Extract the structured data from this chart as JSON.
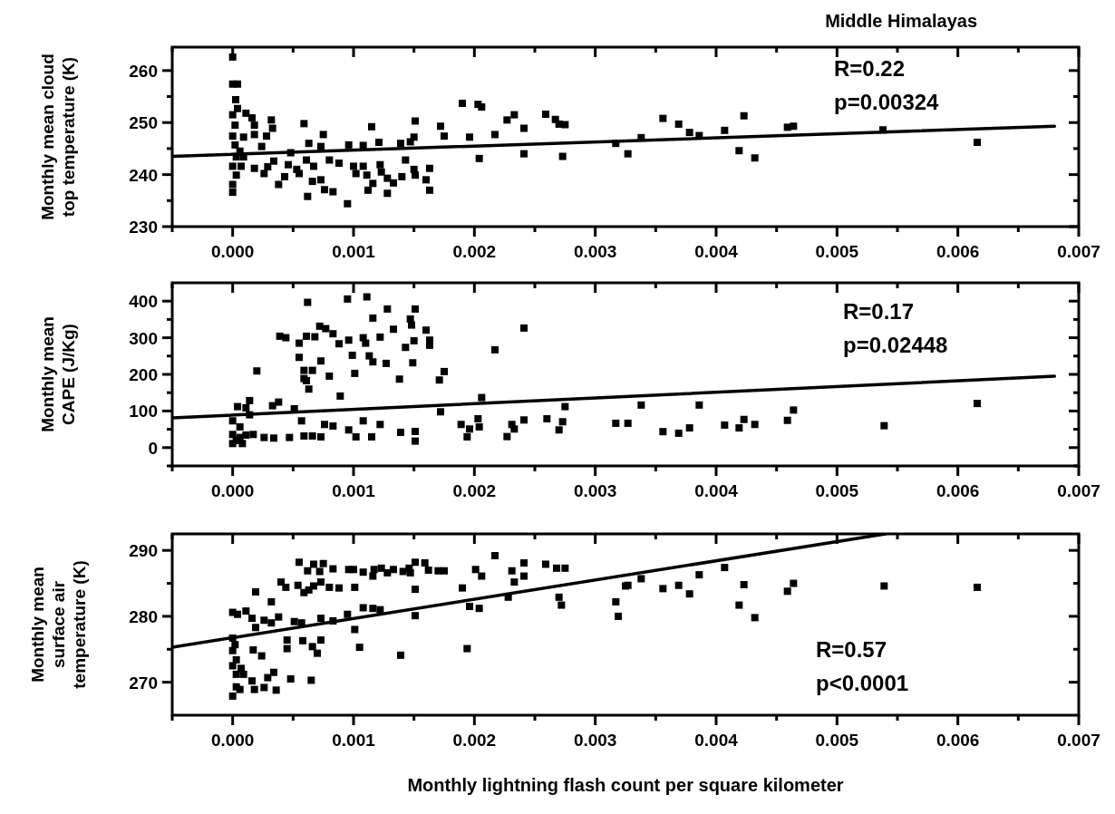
{
  "chart_data": [
    {
      "type": "scatter",
      "title": "Middle Himalayas",
      "ylabel": "Monthly mean cloud\ntop temperature (K)",
      "xlim": [
        -0.0005,
        0.007
      ],
      "ylim": [
        230,
        264.5
      ],
      "xticks": [
        {
          "value": -0.0005,
          "label": null
        },
        {
          "value": 0,
          "label": "0.000"
        },
        {
          "value": 0.0005,
          "label": null
        },
        {
          "value": 0.001,
          "label": "0.001"
        },
        {
          "value": 0.0015,
          "label": null
        },
        {
          "value": 0.002,
          "label": "0.002"
        },
        {
          "value": 0.0025,
          "label": null
        },
        {
          "value": 0.003,
          "label": "0.003"
        },
        {
          "value": 0.0035,
          "label": null
        },
        {
          "value": 0.004,
          "label": "0.004"
        },
        {
          "value": 0.0045,
          "label": null
        },
        {
          "value": 0.005,
          "label": "0.005"
        },
        {
          "value": 0.0055,
          "label": null
        },
        {
          "value": 0.006,
          "label": "0.006"
        },
        {
          "value": 0.0065,
          "label": null
        },
        {
          "value": 0.007,
          "label": "0.007"
        }
      ],
      "yticks": [
        230,
        {
          "value": 235,
          "label": null
        },
        240,
        {
          "value": 245,
          "label": null
        },
        250,
        {
          "value": 255,
          "label": null
        },
        260
      ],
      "annotations": [
        "R=0.22",
        "p=0.00324"
      ],
      "series": [
        {
          "marker": "square",
          "color": "#000000",
          "x": [
            0,
            4e-05,
            2.5e-05,
            4e-05,
            0,
            0.00011,
            0.00016,
            0.00018,
            2e-05,
            0.00032,
            0.00033,
            0,
            9e-05,
            0.00018,
            0.00028,
            0.00024,
            2e-05,
            6e-05,
            3e-05,
            9e-05,
            0,
            7e-05,
            3e-05,
            0,
            0,
            0.00018,
            0.00026,
            0.00029,
            0.00034,
            0.00038,
            0.00043,
            0.00046,
            0.00048,
            0.00053,
            0.00055,
            0.00059,
            0.00061,
            0.00063,
            0.00062,
            0.00066,
            0.00067,
            0.00073,
            0.00073,
            0.00075,
            0.00076,
            0.0008,
            0.00083,
            0.00088,
            0.00095,
            0.00096,
            0.001,
            0.00102,
            0.00108,
            0.00108,
            0.00111,
            0.00112,
            0.00115,
            0.00116,
            0.00121,
            0.00122,
            0.00123,
            0.00128,
            0.00128,
            0.00133,
            0.00139,
            0.0014,
            0.00143,
            0.00147,
            0.0015,
            0.00151,
            0.0015,
            0.00151,
            0.0016,
            0.00163,
            0.00163,
            0.00172,
            0.00175,
            0.0019,
            0.00196,
            0.00203,
            0.00206,
            0.00204,
            0.00217,
            0.00227,
            0.00233,
            0.00241,
            0.00241,
            0.00259,
            0.00267,
            0.0027,
            0.00275,
            0.00273,
            0.00317,
            0.00327,
            0.00338,
            0.00356,
            0.00369,
            0.00378,
            0.00386,
            0.00407,
            0.00419,
            0.00423,
            0.00432,
            0.00459,
            0.00464,
            0.00538,
            0.00616,
            0
          ],
          "values": [
            257.4,
            257.4,
            254.4,
            252.7,
            251.5,
            251.8,
            250.9,
            249.5,
            249.5,
            250.5,
            248.9,
            247.4,
            247.2,
            247.7,
            247.4,
            245.4,
            245.7,
            244.5,
            243.4,
            243.4,
            241.6,
            241.6,
            239.9,
            238.1,
            236.6,
            241.2,
            240.2,
            241.5,
            242.6,
            238.1,
            239.6,
            241.9,
            244.2,
            241.0,
            240.2,
            249.8,
            242.8,
            246.0,
            235.8,
            238.7,
            241.6,
            239.0,
            245.4,
            247.7,
            237.1,
            242.8,
            236.7,
            242.2,
            234.4,
            245.7,
            241.6,
            240.2,
            245.6,
            241.6,
            239.9,
            237.0,
            249.2,
            238.3,
            246.2,
            241.9,
            240.5,
            239.3,
            236.4,
            238.4,
            246.0,
            239.6,
            242.8,
            246.3,
            247.2,
            250.3,
            241.0,
            239.9,
            239.0,
            241.2,
            237.0,
            249.3,
            247.4,
            253.7,
            247.2,
            253.5,
            253.0,
            243.1,
            247.7,
            250.5,
            251.5,
            248.9,
            244.0,
            251.6,
            250.6,
            249.7,
            249.6,
            243.5,
            246.0,
            244.0,
            247.1,
            250.8,
            249.7,
            248.1,
            247.5,
            248.5,
            244.6,
            251.3,
            243.2,
            249.1,
            249.3,
            248.6,
            246.2,
            262.6
          ]
        },
        {
          "type": "line",
          "marker": "none",
          "color": "#000000",
          "x": [
            -0.0005,
            0.0068
          ],
          "values": [
            243.5,
            249.3
          ]
        }
      ]
    },
    {
      "type": "scatter",
      "ylabel": "Monthly mean\nCAPE (J/Kg)",
      "xlim": [
        -0.0005,
        0.007
      ],
      "ylim": [
        -50,
        450
      ],
      "xticks": [
        {
          "value": -0.0005,
          "label": null
        },
        {
          "value": 0,
          "label": "0.000"
        },
        {
          "value": 0.0005,
          "label": null
        },
        {
          "value": 0.001,
          "label": "0.001"
        },
        {
          "value": 0.0015,
          "label": null
        },
        {
          "value": 0.002,
          "label": "0.002"
        },
        {
          "value": 0.0025,
          "label": null
        },
        {
          "value": 0.003,
          "label": "0.003"
        },
        {
          "value": 0.0035,
          "label": null
        },
        {
          "value": 0.004,
          "label": "0.004"
        },
        {
          "value": 0.0045,
          "label": null
        },
        {
          "value": 0.005,
          "label": "0.005"
        },
        {
          "value": 0.0055,
          "label": null
        },
        {
          "value": 0.006,
          "label": "0.006"
        },
        {
          "value": 0.0065,
          "label": null
        },
        {
          "value": 0.007,
          "label": "0.007"
        }
      ],
      "yticks": [
        {
          "value": -50,
          "label": null
        },
        0,
        {
          "value": 50,
          "label": null
        },
        100,
        {
          "value": 150,
          "label": null
        },
        200,
        {
          "value": 250,
          "label": null
        },
        300,
        {
          "value": 350,
          "label": null
        },
        400
      ],
      "annotations": [
        "R=0.17",
        "p=0.02448"
      ],
      "series": [
        {
          "marker": "square",
          "color": "#000000",
          "x": [
            0.00062,
            0.00095,
            0.00111,
            0.00128,
            0.00151,
            0.00116,
            0.00147,
            0.00148,
            0.00072,
            0.00077,
            0.00133,
            0.0016,
            0.00241,
            0.00083,
            0.00039,
            0.00044,
            0.00061,
            0.00068,
            0.00096,
            0.00108,
            0.00122,
            0.0015,
            0.00163,
            0.00055,
            0.00088,
            0.0011,
            0.00163,
            0.00143,
            0.00217,
            0.00099,
            0.00055,
            0.00113,
            0.00073,
            0.00116,
            0.00127,
            0.00149,
            0.0002,
            0.00059,
            0.00066,
            0.0008,
            0.00101,
            0.00175,
            0.00059,
            0.00061,
            0.00138,
            0.00171,
            0.00063,
            0.00089,
            0.00206,
            0.00014,
            0.00038,
            0.00033,
            4e-05,
            0.00011,
            0.00051,
            0.00014,
            0.00172,
            0.00275,
            0,
            0.00057,
            0.00108,
            6e-05,
            0.00076,
            0.00083,
            0.00122,
            0.00203,
            0.0026,
            0.00241,
            0.00273,
            0.00189,
            0.00196,
            0.00204,
            0.00231,
            0.00233,
            0.0027,
            0.00317,
            0.00327,
            0.00096,
            0.00102,
            0.00115,
            0.00139,
            0.00151,
            0.00151,
            0.00194,
            0.00227,
            0.00047,
            0.00073,
            0.00059,
            0.00066,
            0.00034,
            0.00026,
            0.00017,
            0.00011,
            0,
            3e-05,
            6e-05,
            0,
            8e-05,
            0.00338,
            0.00386,
            0.00356,
            0.00369,
            0.00378,
            0.00407,
            0.00419,
            0.00423,
            0.00432,
            0.00459,
            0.00464,
            0.00539,
            0.00616
          ],
          "values": [
            396.7,
            405.8,
            411.6,
            378.5,
            378.5,
            353.7,
            351.2,
            334.7,
            331.5,
            324.9,
            323.2,
            320.8,
            326.5,
            310.9,
            304.2,
            300.1,
            304.2,
            302.6,
            293.5,
            300.1,
            301.8,
            291.8,
            293.5,
            285.2,
            283.6,
            285.2,
            279.5,
            273.7,
            267.1,
            252.1,
            246.4,
            250.5,
            236.6,
            234.1,
            230.0,
            231.6,
            209.3,
            210.9,
            210.9,
            195.2,
            202.7,
            207.7,
            188.6,
            182.9,
            187.0,
            184.6,
            159.8,
            140.8,
            136.7,
            128.4,
            124.3,
            114.4,
            111.9,
            108.6,
            106.1,
            89.6,
            97.8,
            111.9,
            73.1,
            73.1,
            73.1,
            56.6,
            63.2,
            59.0,
            63.2,
            78.8,
            78.8,
            75.5,
            70.6,
            63.2,
            50.8,
            56.6,
            63.2,
            50.8,
            48.3,
            66.5,
            66.5,
            48.3,
            29.3,
            29.3,
            41.7,
            44.2,
            17.8,
            29.3,
            30.1,
            27.7,
            29.3,
            31.8,
            31.8,
            26.0,
            27.7,
            35.9,
            34.3,
            11.1,
            19.4,
            27.7,
            35.9,
            11.1,
            116.2,
            116.2,
            43.6,
            39.3,
            53.8,
            61.5,
            53.8,
            76.9,
            63.2,
            74.4,
            102.6,
            59.8,
            120.5
          ]
        },
        {
          "type": "line",
          "marker": "none",
          "color": "#000000",
          "x": [
            -0.0005,
            0.0068
          ],
          "values": [
            81,
            195
          ]
        }
      ]
    },
    {
      "type": "scatter",
      "xlabel": "Monthly lightning flash count per square kilometer",
      "ylabel": "Monthly mean\nsurface air\ntemperature (K)",
      "xlim": [
        -0.0005,
        0.007
      ],
      "ylim": [
        265,
        292.5
      ],
      "xticks": [
        {
          "value": -0.0005,
          "label": null
        },
        {
          "value": 0,
          "label": "0.000"
        },
        {
          "value": 0.0005,
          "label": null
        },
        {
          "value": 0.001,
          "label": "0.001"
        },
        {
          "value": 0.0015,
          "label": null
        },
        {
          "value": 0.002,
          "label": "0.002"
        },
        {
          "value": 0.0025,
          "label": null
        },
        {
          "value": 0.003,
          "label": "0.003"
        },
        {
          "value": 0.0035,
          "label": null
        },
        {
          "value": 0.004,
          "label": "0.004"
        },
        {
          "value": 0.0045,
          "label": null
        },
        {
          "value": 0.005,
          "label": "0.005"
        },
        {
          "value": 0.0055,
          "label": null
        },
        {
          "value": 0.006,
          "label": "0.006"
        },
        {
          "value": 0.0065,
          "label": null
        },
        {
          "value": 0.007,
          "label": "0.007"
        }
      ],
      "yticks": [
        270,
        {
          "value": 275,
          "label": null
        },
        280,
        {
          "value": 285,
          "label": null
        },
        290
      ],
      "annotations": [
        "R=0.57",
        "p<0.0001"
      ],
      "series": [
        {
          "marker": "square",
          "color": "#000000",
          "x": [
            0.00217,
            0.00055,
            0.00067,
            0.00075,
            0.00072,
            0.00062,
            0.00083,
            0.00096,
            0.001,
            0.00108,
            0.00116,
            0.00117,
            0.00123,
            0.00128,
            0.00133,
            0.00141,
            0.00146,
            0.00151,
            0.00147,
            0.00159,
            0.00162,
            0.0017,
            0.00175,
            0.00201,
            0.00206,
            0.00231,
            0.00241,
            0.00241,
            0.00259,
            0.00268,
            0.00275,
            0.00233,
            0.00019,
            0.0004,
            0.00044,
            0.00054,
            0.00059,
            0.00063,
            0.00067,
            0.00073,
            0.0008,
            0.00088,
            0.00101,
            0.00151,
            0.0019,
            0.00032,
            0.00228,
            0.0027,
            0.00272,
            0.00317,
            0.00327,
            0.00319,
            0.00108,
            0.00116,
            0.00122,
            0.00196,
            0.00204,
            0.00151,
            0.00095,
            0.00073,
            0.00083,
            0,
            4e-05,
            0.00011,
            0.00016,
            0.00026,
            0.00032,
            0.00038,
            0.00051,
            0.00057,
            0.00019,
            0.00101,
            0.00045,
            0.00058,
            0.00073,
            0.00045,
            0.00066,
            0.0007,
            0.00105,
            0.00194,
            0.00139,
            0.00017,
            0.00024,
            0,
            2e-05,
            0,
            3e-05,
            0,
            7e-05,
            3e-05,
            0.00016,
            9e-05,
            0.00029,
            0.00034,
            0.00048,
            0.00065,
            0.00018,
            0.00026,
            0.00036,
            3e-05,
            0,
            6e-05,
            0.00325,
            0.00338,
            0.00356,
            0.00369,
            0.00378,
            0.00386,
            0.00407,
            0.00423,
            0.00419,
            0.00432,
            0.00459,
            0.00464,
            0.00539,
            0.00616
          ],
          "values": [
            289.2,
            288.2,
            287.9,
            288.0,
            286.8,
            286.9,
            287.2,
            287.1,
            287.1,
            286.7,
            286.1,
            287.1,
            287.3,
            286.6,
            287.1,
            286.8,
            287.3,
            288.2,
            286.6,
            288.1,
            287.0,
            286.9,
            286.9,
            287.1,
            286.1,
            286.9,
            288.1,
            286.1,
            287.9,
            287.3,
            287.3,
            285.2,
            283.7,
            285.2,
            284.4,
            284.7,
            283.6,
            284.0,
            284.6,
            285.2,
            284.4,
            284.3,
            284.4,
            284.1,
            284.3,
            282.2,
            282.9,
            282.9,
            281.7,
            282.2,
            284.7,
            280.0,
            281.3,
            281.2,
            281.0,
            281.5,
            281.2,
            280.1,
            280.3,
            279.7,
            279.3,
            280.6,
            280.3,
            280.8,
            279.7,
            279.4,
            279.0,
            279.9,
            279.2,
            279.0,
            278.3,
            278.0,
            276.4,
            276.3,
            276.4,
            275.1,
            275.4,
            274.4,
            275.3,
            275.1,
            274.1,
            274.9,
            274.0,
            276.7,
            275.7,
            274.8,
            273.4,
            272.5,
            272.1,
            271.2,
            270.2,
            271.2,
            270.7,
            271.5,
            270.5,
            270.3,
            268.9,
            269.2,
            268.8,
            269.3,
            267.9,
            268.9,
            284.6,
            285.7,
            284.2,
            284.7,
            283.4,
            286.3,
            287.4,
            284.8,
            281.7,
            279.8,
            283.8,
            285.0,
            284.6,
            284.4
          ]
        },
        {
          "type": "line",
          "marker": "none",
          "color": "#000000",
          "x": [
            -0.0005,
            0.0054
          ],
          "values": [
            275.3,
            292.5
          ]
        }
      ]
    }
  ]
}
